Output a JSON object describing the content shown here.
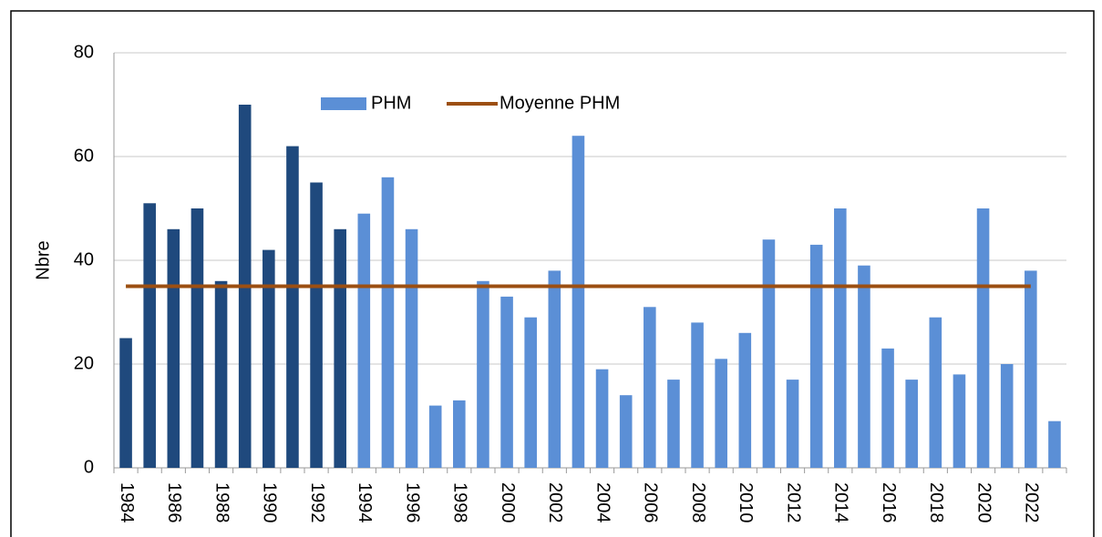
{
  "chart_data": {
    "type": "bar",
    "y_label": "Nbre",
    "categories": [
      "1984",
      null,
      "1986",
      null,
      "1988",
      null,
      "1990",
      null,
      "1992",
      null,
      "1994",
      null,
      "1996",
      null,
      "1998",
      null,
      "2000",
      null,
      "2002",
      null,
      "2004",
      null,
      "2006",
      null,
      "2008",
      null,
      "2010",
      null,
      "2012",
      null,
      "2014",
      null,
      "2016",
      null,
      "2018",
      null,
      "2020",
      null,
      "2022",
      null
    ],
    "series": [
      {
        "name": "PHM",
        "type": "bar",
        "color": "#5b8fd6",
        "colors": [
          "#1f497d",
          "#1f497d",
          "#1f497d",
          "#1f497d",
          "#1f497d",
          "#1f497d",
          "#1f497d",
          "#1f497d",
          "#1f497d",
          "#1f497d",
          "#5b8fd6",
          "#5b8fd6",
          "#5b8fd6",
          "#5b8fd6",
          "#5b8fd6",
          "#5b8fd6",
          "#5b8fd6",
          "#5b8fd6",
          "#5b8fd6",
          "#5b8fd6",
          "#5b8fd6",
          "#5b8fd6",
          "#5b8fd6",
          "#5b8fd6",
          "#5b8fd6",
          "#5b8fd6",
          "#5b8fd6",
          "#5b8fd6",
          "#5b8fd6",
          "#5b8fd6",
          "#5b8fd6",
          "#5b8fd6",
          "#5b8fd6",
          "#5b8fd6",
          "#5b8fd6",
          "#5b8fd6",
          "#5b8fd6",
          "#5b8fd6",
          "#5b8fd6",
          "#5b8fd6"
        ],
        "values": [
          25,
          51,
          46,
          50,
          36,
          70,
          42,
          62,
          55,
          46,
          49,
          56,
          46,
          12,
          13,
          36,
          33,
          29,
          38,
          64,
          19,
          14,
          31,
          17,
          28,
          21,
          26,
          44,
          17,
          43,
          50,
          39,
          23,
          17,
          29,
          18,
          50,
          20,
          38,
          9
        ]
      },
      {
        "name": "Moyenne PHM",
        "type": "line",
        "color": "#9c4f12",
        "values": [
          35,
          35,
          35,
          35,
          35,
          35,
          35,
          35,
          35,
          35,
          35,
          35,
          35,
          35,
          35,
          35,
          35,
          35,
          35,
          35,
          35,
          35,
          35,
          35,
          35,
          35,
          35,
          35,
          35,
          35,
          35,
          35,
          35,
          35,
          35,
          35,
          35,
          35,
          35,
          null
        ]
      }
    ],
    "ylim": [
      0,
      80
    ],
    "yticks": [
      0,
      20,
      40,
      60,
      80
    ],
    "grid": true
  }
}
